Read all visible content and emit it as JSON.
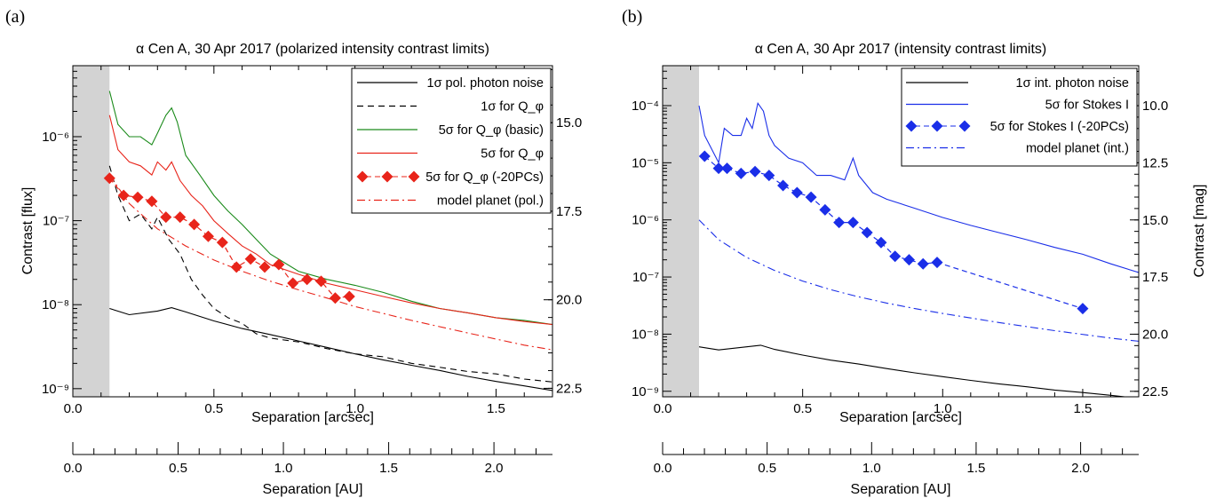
{
  "panels": [
    {
      "letter": "(a)",
      "title": "α Cen A, 30 Apr 2017 (polarized intensity contrast limits)",
      "ylabel": "Contrast [flux]",
      "y2label": "",
      "xlabel": "Separation [arcsec]",
      "xlabel_au": "Separation [AU]",
      "y_ticks": [
        "10⁻⁹",
        "10⁻⁸",
        "10⁻⁷",
        "10⁻⁶"
      ],
      "y2_ticks": [
        "15.0",
        "17.5",
        "20.0",
        "22.5"
      ],
      "x_ticks": [
        "0.0",
        "0.5",
        "1.0",
        "1.5"
      ],
      "au_ticks": [
        "0.0",
        "0.5",
        "1.0",
        "1.5",
        "2.0"
      ],
      "legend": [
        "1σ pol. photon noise",
        "1σ for Q_φ",
        "5σ for Q_φ (basic)",
        "5σ for Q_φ",
        "5σ for Q_φ (-20PCs)",
        "model planet (pol.)"
      ]
    },
    {
      "letter": "(b)",
      "title": "α Cen A, 30 Apr 2017 (intensity contrast limits)",
      "ylabel": "",
      "y2label": "Contrast [mag]",
      "xlabel": "Separation [arcsec]",
      "xlabel_au": "Separation [AU]",
      "y_ticks": [
        "10⁻⁹",
        "10⁻⁸",
        "10⁻⁷",
        "10⁻⁶",
        "10⁻⁵",
        "10⁻⁴"
      ],
      "y2_ticks": [
        "10.0",
        "12.5",
        "15.0",
        "17.5",
        "20.0",
        "22.5"
      ],
      "x_ticks": [
        "0.0",
        "0.5",
        "1.0",
        "1.5"
      ],
      "au_ticks": [
        "0.0",
        "0.5",
        "1.0",
        "1.5",
        "2.0"
      ],
      "legend": [
        "1σ int. photon noise",
        "5σ for Stokes I",
        "5σ for Stokes I (-20PCs)",
        "model planet (int.)"
      ]
    }
  ],
  "chart_data": [
    {
      "type": "line",
      "title": "α Cen A, 30 Apr 2017 (polarized intensity contrast limits)",
      "xlabel": "Separation [arcsec]",
      "ylabel": "Contrast [flux]",
      "xlim": [
        0,
        1.7
      ],
      "ylim": [
        8e-10,
        7e-06
      ],
      "y_scale": "log",
      "y2_lim_mag": [
        13.39,
        22.74
      ],
      "inner_mask_arcsec": 0.13,
      "au_axis": {
        "label": "Separation [AU]",
        "ticks": [
          0,
          0.5,
          1.0,
          1.5,
          2.0
        ],
        "au_per_arcsec": 1.34
      },
      "series": [
        {
          "name": "1σ pol. photon noise",
          "style": "solid",
          "color": "#000000",
          "x": [
            0.13,
            0.2,
            0.3,
            0.35,
            0.4,
            0.5,
            0.6,
            0.7,
            0.8,
            0.9,
            1.0,
            1.1,
            1.2,
            1.3,
            1.4,
            1.5,
            1.6,
            1.7
          ],
          "y": [
            9e-09,
            7.6e-09,
            8.4e-09,
            9.2e-09,
            8.2e-09,
            6.4e-09,
            5.2e-09,
            4.4e-09,
            3.7e-09,
            3.1e-09,
            2.6e-09,
            2.2e-09,
            1.9e-09,
            1.65e-09,
            1.4e-09,
            1.22e-09,
            1.08e-09,
            9.5e-10
          ]
        },
        {
          "name": "1σ for Q_φ",
          "style": "dashed",
          "color": "#000000",
          "x": [
            0.13,
            0.16,
            0.2,
            0.24,
            0.28,
            0.3,
            0.34,
            0.38,
            0.42,
            0.46,
            0.5,
            0.55,
            0.6,
            0.65,
            0.7,
            0.8,
            0.9,
            1.0,
            1.1,
            1.2,
            1.3,
            1.4,
            1.5,
            1.6,
            1.7
          ],
          "y": [
            4.5e-07,
            2e-07,
            1e-07,
            1.2e-07,
            8e-08,
            1.1e-07,
            6e-08,
            4e-08,
            2e-08,
            1.3e-08,
            9e-09,
            7e-09,
            6e-09,
            4.5e-09,
            4e-09,
            3.6e-09,
            3e-09,
            2.6e-09,
            2.4e-09,
            2e-09,
            1.8e-09,
            1.6e-09,
            1.5e-09,
            1.3e-09,
            1.2e-09
          ]
        },
        {
          "name": "5σ for Q_φ (basic)",
          "style": "solid",
          "color": "#1a8a1a",
          "x": [
            0.13,
            0.16,
            0.2,
            0.24,
            0.28,
            0.3,
            0.33,
            0.35,
            0.37,
            0.4,
            0.45,
            0.5,
            0.55,
            0.6,
            0.65,
            0.7,
            0.8,
            0.9,
            1.0,
            1.1,
            1.2,
            1.3,
            1.4,
            1.5,
            1.6,
            1.7
          ],
          "y": [
            3.5e-06,
            1.4e-06,
            1e-06,
            1e-06,
            8e-07,
            1.1e-06,
            1.8e-06,
            2.2e-06,
            1.5e-06,
            6e-07,
            3.5e-07,
            2e-07,
            1.3e-07,
            9e-08,
            6e-08,
            4e-08,
            2.5e-08,
            2e-08,
            1.7e-08,
            1.4e-08,
            1.1e-08,
            9e-09,
            8e-09,
            7e-09,
            6.5e-09,
            5.8e-09
          ]
        },
        {
          "name": "5σ for Q_φ",
          "style": "solid",
          "color": "#e8241a",
          "x": [
            0.13,
            0.16,
            0.2,
            0.24,
            0.28,
            0.3,
            0.33,
            0.35,
            0.38,
            0.42,
            0.46,
            0.5,
            0.55,
            0.6,
            0.65,
            0.7,
            0.8,
            0.9,
            1.0,
            1.1,
            1.2,
            1.3,
            1.4,
            1.5,
            1.6,
            1.7
          ],
          "y": [
            1.8e-06,
            7e-07,
            5e-07,
            4.5e-07,
            3.5e-07,
            5e-07,
            4e-07,
            5e-07,
            3e-07,
            2e-07,
            1.5e-07,
            1e-07,
            7e-08,
            5e-08,
            4e-08,
            3e-08,
            2.3e-08,
            1.8e-08,
            1.5e-08,
            1.25e-08,
            1.05e-08,
            9e-09,
            8e-09,
            7e-09,
            6.3e-09,
            5.8e-09
          ]
        },
        {
          "name": "5σ for Q_φ (-20PCs)",
          "style": "markers-diamond",
          "color": "#e8241a",
          "x": [
            0.13,
            0.18,
            0.23,
            0.28,
            0.33,
            0.38,
            0.43,
            0.48,
            0.53,
            0.58,
            0.63,
            0.68,
            0.73,
            0.78,
            0.83,
            0.88,
            0.93,
            0.98
          ],
          "y": [
            3.2e-07,
            2e-07,
            1.9e-07,
            1.7e-07,
            1.1e-07,
            1.1e-07,
            9e-08,
            6.5e-08,
            5.5e-08,
            2.8e-08,
            3.5e-08,
            2.8e-08,
            3e-08,
            1.8e-08,
            2e-08,
            1.9e-08,
            1.2e-08,
            1.25e-08
          ]
        },
        {
          "name": "model planet (pol.)",
          "style": "dashdot",
          "color": "#e8241a",
          "x": [
            0.13,
            0.2,
            0.3,
            0.4,
            0.5,
            0.6,
            0.7,
            0.8,
            0.9,
            1.0,
            1.2,
            1.4,
            1.6,
            1.7
          ],
          "y": [
            3.5e-07,
            1.6e-07,
            8e-08,
            5e-08,
            3.4e-08,
            2.5e-08,
            1.9e-08,
            1.5e-08,
            1.2e-08,
            9.5e-09,
            6.5e-09,
            4.6e-09,
            3.3e-09,
            2.9e-09
          ]
        }
      ]
    },
    {
      "type": "line",
      "title": "α Cen A, 30 Apr 2017 (intensity contrast limits)",
      "xlabel": "Separation [arcsec]",
      "ylabel": "Contrast [mag]",
      "xlim": [
        0,
        1.7
      ],
      "ylim": [
        8e-10,
        0.0005
      ],
      "y_scale": "log",
      "y2_lim_mag": [
        8.25,
        22.74
      ],
      "inner_mask_arcsec": 0.13,
      "au_axis": {
        "label": "Separation [AU]",
        "ticks": [
          0,
          0.5,
          1.0,
          1.5,
          2.0
        ],
        "au_per_arcsec": 1.34
      },
      "series": [
        {
          "name": "1σ int. photon noise",
          "style": "solid",
          "color": "#000000",
          "x": [
            0.13,
            0.2,
            0.3,
            0.35,
            0.4,
            0.5,
            0.6,
            0.7,
            0.8,
            0.9,
            1.0,
            1.1,
            1.2,
            1.3,
            1.4,
            1.5,
            1.6,
            1.7
          ],
          "y": [
            6e-09,
            5.3e-09,
            6e-09,
            6.4e-09,
            5.4e-09,
            4.3e-09,
            3.5e-09,
            3e-09,
            2.5e-09,
            2.1e-09,
            1.8e-09,
            1.55e-09,
            1.35e-09,
            1.2e-09,
            1.05e-09,
            9.5e-10,
            8.5e-10,
            7.5e-10
          ]
        },
        {
          "name": "5σ for Stokes I",
          "style": "solid",
          "color": "#1a2ee8",
          "x": [
            0.13,
            0.15,
            0.2,
            0.22,
            0.25,
            0.28,
            0.3,
            0.32,
            0.34,
            0.36,
            0.38,
            0.4,
            0.45,
            0.5,
            0.55,
            0.6,
            0.65,
            0.68,
            0.7,
            0.75,
            0.8,
            0.9,
            1.0,
            1.1,
            1.2,
            1.3,
            1.4,
            1.5,
            1.6,
            1.7
          ],
          "y": [
            0.0001,
            3e-05,
            1e-05,
            4e-05,
            3e-05,
            3e-05,
            6e-05,
            4e-05,
            0.00011,
            8e-05,
            3e-05,
            2e-05,
            1.2e-05,
            1e-05,
            6e-06,
            6e-06,
            5e-06,
            1.2e-05,
            6e-06,
            3e-06,
            2.3e-06,
            1.6e-06,
            1.1e-06,
            8e-07,
            6e-07,
            4.5e-07,
            3.3e-07,
            2.5e-07,
            1.7e-07,
            1.2e-07
          ]
        },
        {
          "name": "5σ for Stokes I (-20PCs)",
          "style": "markers-diamond",
          "color": "#1a2ee8",
          "x": [
            0.15,
            0.2,
            0.23,
            0.28,
            0.33,
            0.38,
            0.43,
            0.48,
            0.53,
            0.58,
            0.63,
            0.68,
            0.73,
            0.78,
            0.83,
            0.88,
            0.93,
            0.98,
            1.5
          ],
          "y": [
            1.3e-05,
            8e-06,
            8e-06,
            6.5e-06,
            7e-06,
            6e-06,
            4e-06,
            3e-06,
            2.5e-06,
            1.5e-06,
            9e-07,
            9e-07,
            6e-07,
            4e-07,
            2.3e-07,
            2e-07,
            1.7e-07,
            1.8e-07,
            2.8e-08
          ]
        },
        {
          "name": "model planet (int.)",
          "style": "dashdot",
          "color": "#1a2ee8",
          "x": [
            0.13,
            0.2,
            0.3,
            0.4,
            0.5,
            0.6,
            0.7,
            0.8,
            0.9,
            1.0,
            1.2,
            1.4,
            1.6,
            1.7
          ],
          "y": [
            1e-06,
            4.5e-07,
            2.2e-07,
            1.3e-07,
            8.5e-08,
            6e-08,
            4.5e-08,
            3.5e-08,
            2.8e-08,
            2.3e-08,
            1.6e-08,
            1.15e-08,
            8.5e-09,
            7.5e-09
          ]
        }
      ]
    }
  ]
}
